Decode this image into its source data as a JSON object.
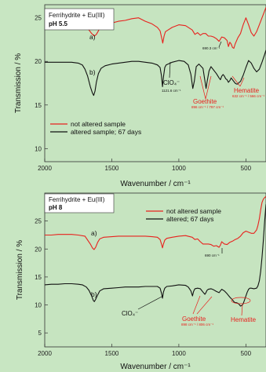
{
  "colors": {
    "background": "#c8e6c2",
    "plot_bg": "#c6e4c0",
    "red": "#e8211d",
    "black": "#111111"
  },
  "chart_data": [
    {
      "type": "line",
      "title": "",
      "sample_label": "Ferrihydrite + Eu(III)",
      "ph_label": "pH 5.5",
      "xlabel": "Wavenumber / cm⁻¹",
      "ylabel": "Transmission / %",
      "xlim": [
        2000,
        350
      ],
      "ylim": [
        8.5,
        26.5
      ],
      "x_ticks": [
        2000,
        1500,
        1000,
        500
      ],
      "y_ticks": [
        10,
        15,
        20,
        25
      ],
      "legend_position": "bottom-left",
      "series": [
        {
          "name": "not altered sample",
          "label": "a)",
          "color": "#e8211d",
          "x": [
            2000,
            1950,
            1900,
            1850,
            1800,
            1750,
            1720,
            1680,
            1650,
            1630,
            1615,
            1600,
            1580,
            1550,
            1500,
            1450,
            1400,
            1350,
            1300,
            1250,
            1200,
            1160,
            1140,
            1125,
            1120,
            1110,
            1100,
            1080,
            1050,
            1000,
            950,
            900,
            880,
            860,
            840,
            820,
            800,
            780,
            760,
            740,
            720,
            700,
            680,
            660,
            640,
            630,
            620,
            610,
            600,
            590,
            580,
            560,
            540,
            520,
            500,
            480,
            460,
            440,
            420,
            400,
            380,
            360,
            350
          ],
          "y": [
            24.5,
            24.6,
            24.6,
            24.8,
            24.9,
            24.7,
            24.4,
            23.8,
            23.2,
            22.9,
            23.1,
            23.5,
            24.1,
            24.3,
            24.4,
            24.6,
            24.7,
            24.9,
            25.0,
            24.6,
            24.3,
            23.9,
            23.5,
            22.5,
            22.1,
            22.9,
            23.4,
            23.6,
            23.9,
            24.2,
            24.1,
            23.6,
            23.1,
            23.3,
            23.0,
            23.2,
            23.2,
            22.9,
            22.9,
            22.8,
            22.6,
            22.3,
            22.8,
            22.7,
            22.4,
            21.7,
            22.2,
            22.0,
            21.6,
            21.5,
            22.0,
            22.7,
            23.2,
            24.2,
            25.0,
            24.2,
            23.3,
            22.9,
            23.4,
            24.2,
            25.0,
            25.8,
            26.2
          ]
        },
        {
          "name": "altered sample; 67 days",
          "label": "b)",
          "color": "#111111",
          "x": [
            2000,
            1950,
            1900,
            1850,
            1800,
            1750,
            1720,
            1700,
            1680,
            1660,
            1645,
            1635,
            1625,
            1615,
            1600,
            1580,
            1550,
            1500,
            1450,
            1400,
            1350,
            1300,
            1250,
            1200,
            1160,
            1140,
            1130,
            1122,
            1115,
            1105,
            1095,
            1080,
            1050,
            1000,
            960,
            930,
            910,
            896,
            885,
            870,
            850,
            820,
            800,
            797,
            790,
            775,
            760,
            740,
            720,
            700,
            690,
            680,
            670,
            660,
            650,
            640,
            630,
            620,
            610,
            600,
            590,
            580,
            570,
            560,
            550,
            540,
            520,
            500,
            480,
            460,
            440,
            420,
            400,
            380,
            360,
            350
          ],
          "y": [
            19.9,
            19.9,
            19.9,
            19.9,
            19.9,
            19.8,
            19.6,
            19.1,
            18.3,
            17.1,
            16.4,
            16.1,
            16.6,
            17.6,
            18.6,
            19.2,
            19.5,
            19.7,
            19.8,
            19.9,
            20.0,
            20.0,
            19.9,
            19.8,
            19.6,
            19.3,
            18.4,
            17.1,
            18.2,
            19.3,
            19.6,
            19.7,
            19.9,
            20.1,
            20.0,
            19.6,
            18.5,
            16.9,
            17.7,
            19.4,
            19.7,
            19.2,
            17.2,
            16.9,
            17.6,
            18.9,
            19.4,
            19.0,
            18.6,
            18.1,
            17.9,
            18.3,
            18.5,
            18.3,
            18.0,
            17.9,
            17.6,
            17.8,
            18.1,
            17.9,
            17.7,
            17.5,
            17.4,
            17.4,
            17.6,
            17.7,
            18.4,
            19.3,
            20.1,
            19.8,
            19.2,
            18.8,
            19.1,
            19.9,
            20.8,
            21.3
          ]
        }
      ],
      "annotations": [
        {
          "text": "ClO₄⁻",
          "sub": "1121.6 cm⁻¹",
          "color": "#111111"
        },
        {
          "text": "Goethite",
          "sub": "896 cm⁻¹ / 797 cm⁻¹",
          "color": "#e8211d"
        },
        {
          "text": "Hematite",
          "sub": "632 cm⁻¹ / 566 cm⁻¹",
          "color": "#e8211d"
        },
        {
          "text": "",
          "sub": "690.3 cm⁻¹",
          "color": "#111111"
        }
      ]
    },
    {
      "type": "line",
      "title": "",
      "sample_label": "Ferrihydrite + Eu(III)",
      "ph_label": "pH 8",
      "xlabel": "Wavenumber / cm⁻¹",
      "ylabel": "Transmission / %",
      "xlim": [
        2000,
        350
      ],
      "ylim": [
        2.5,
        30
      ],
      "x_ticks": [
        2000,
        1500,
        1000,
        500
      ],
      "y_ticks": [
        5,
        10,
        15,
        20,
        25
      ],
      "legend_position": "top-right",
      "series": [
        {
          "name": "not altered sample",
          "label": "a)",
          "color": "#e8211d",
          "x": [
            2000,
            1950,
            1900,
            1850,
            1800,
            1750,
            1700,
            1680,
            1660,
            1645,
            1632,
            1620,
            1605,
            1590,
            1560,
            1500,
            1450,
            1400,
            1350,
            1300,
            1250,
            1200,
            1160,
            1140,
            1128,
            1122,
            1115,
            1105,
            1090,
            1050,
            1000,
            950,
            900,
            880,
            860,
            840,
            820,
            800,
            780,
            760,
            740,
            720,
            700,
            690,
            680,
            660,
            640,
            620,
            600,
            580,
            560,
            540,
            520,
            500,
            480,
            460,
            440,
            420,
            410,
            400,
            390,
            380,
            370,
            360,
            350
          ],
          "y": [
            22.5,
            22.5,
            22.6,
            22.6,
            22.6,
            22.5,
            22.3,
            21.6,
            20.9,
            20.2,
            19.9,
            20.3,
            21.2,
            21.8,
            22.1,
            22.2,
            22.3,
            22.3,
            22.3,
            22.3,
            22.3,
            22.2,
            22.1,
            21.7,
            20.8,
            20.2,
            20.9,
            21.6,
            21.9,
            22.1,
            22.3,
            22.4,
            22.1,
            21.7,
            21.8,
            21.3,
            20.9,
            20.9,
            20.9,
            20.8,
            20.5,
            20.6,
            20.3,
            20.7,
            21.3,
            20.9,
            20.8,
            21.2,
            21.4,
            21.7,
            21.9,
            22.3,
            22.9,
            23.2,
            23.0,
            22.8,
            22.8,
            23.4,
            24.2,
            25.4,
            27.0,
            28.3,
            28.9,
            29.2,
            29.4
          ]
        },
        {
          "name": "altered; 67 days",
          "label": "b)",
          "color": "#111111",
          "x": [
            2000,
            1950,
            1900,
            1850,
            1800,
            1750,
            1720,
            1690,
            1670,
            1650,
            1638,
            1630,
            1620,
            1605,
            1590,
            1560,
            1500,
            1450,
            1400,
            1350,
            1300,
            1250,
            1200,
            1160,
            1140,
            1128,
            1122,
            1115,
            1105,
            1090,
            1050,
            1000,
            950,
            930,
            910,
            898,
            890,
            880,
            860,
            840,
            820,
            806,
            800,
            790,
            780,
            760,
            740,
            720,
            700,
            690,
            680,
            660,
            640,
            620,
            600,
            590,
            580,
            570,
            560,
            550,
            540,
            530,
            520,
            510,
            500,
            490,
            480,
            470,
            460,
            440,
            420,
            410,
            400,
            390,
            380,
            370,
            360,
            350
          ],
          "y": [
            13.6,
            13.7,
            13.7,
            13.8,
            13.8,
            13.7,
            13.6,
            13.2,
            12.6,
            11.6,
            10.8,
            10.6,
            11.0,
            11.8,
            12.5,
            12.9,
            13.0,
            13.1,
            13.2,
            13.2,
            13.2,
            13.3,
            13.3,
            13.3,
            13.0,
            12.0,
            11.2,
            12.3,
            13.0,
            13.3,
            13.4,
            13.6,
            13.5,
            13.2,
            12.5,
            11.6,
            12.4,
            12.9,
            13.0,
            12.9,
            12.3,
            11.9,
            12.1,
            12.6,
            12.8,
            12.9,
            12.7,
            12.4,
            12.2,
            12.5,
            12.8,
            12.5,
            12.0,
            11.4,
            10.9,
            10.6,
            10.4,
            10.4,
            10.3,
            10.1,
            9.8,
            9.9,
            10.2,
            10.9,
            11.6,
            12.3,
            12.8,
            13.0,
            13.0,
            12.9,
            13.0,
            13.4,
            14.3,
            16.0,
            18.5,
            21.5,
            25.0,
            28.0
          ]
        }
      ],
      "annotations": [
        {
          "text": "ClO₄⁻",
          "sub": "",
          "color": "#111111"
        },
        {
          "text": "Goethite",
          "sub": "898 cm⁻¹ / 806 cm⁻¹",
          "color": "#e8211d"
        },
        {
          "text": "Hematite",
          "sub": "",
          "color": "#e8211d"
        },
        {
          "text": "",
          "sub": "690 cm⁻¹",
          "color": "#111111"
        }
      ]
    }
  ]
}
